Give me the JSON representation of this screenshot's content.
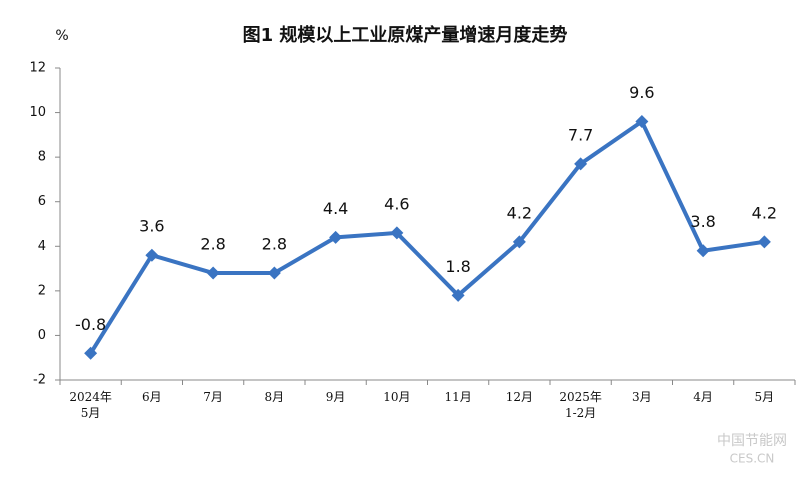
{
  "chart_data": {
    "type": "line",
    "title": "图1  规模以上工业原煤产量增速月度走势",
    "y_label": "%",
    "categories": [
      "2024年\n5月",
      "6月",
      "7月",
      "8月",
      "9月",
      "10月",
      "11月",
      "12月",
      "2025年\n1-2月",
      "3月",
      "4月",
      "5月"
    ],
    "series": [
      {
        "name": "规模以上工业原煤产量增速",
        "color": "#3a74c2",
        "values": [
          -0.8,
          3.6,
          2.8,
          2.8,
          4.4,
          4.6,
          1.8,
          4.2,
          7.7,
          9.6,
          3.8,
          4.2
        ]
      }
    ],
    "ylim": [
      -2,
      12
    ],
    "yticks": [
      -2,
      0,
      2,
      4,
      6,
      8,
      10,
      12
    ],
    "grid": false,
    "watermark": [
      "中国节能网",
      "CES.CN"
    ]
  }
}
